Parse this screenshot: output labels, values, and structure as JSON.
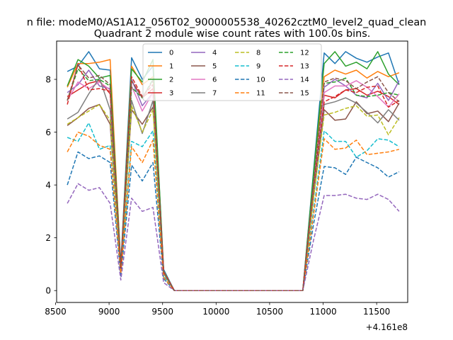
{
  "figure": {
    "suptitle": "n file: modeM0/AS1A12_056T02_9000005538_40262cztM0_level2_quad_clean",
    "title": "Quadrant 2 module wise count rates with 100.0s bins.",
    "offset_label": "+4.161e8"
  },
  "chart_data": {
    "type": "line",
    "title": "Quadrant 2 module wise count rates with 100.0s bins.",
    "xlabel": "",
    "ylabel": "",
    "x_offset": 416100000,
    "xlim": [
      8510,
      11790
    ],
    "ylim": [
      -0.45,
      9.45
    ],
    "xticks": [
      8500,
      9000,
      9500,
      10000,
      10500,
      11000,
      11500
    ],
    "xtick_labels": [
      "8500",
      "9000",
      "9500",
      "10000",
      "10500",
      "11000",
      "11500"
    ],
    "yticks": [
      0,
      2,
      4,
      6,
      8
    ],
    "ytick_labels": [
      "0",
      "2",
      "4",
      "6",
      "8"
    ],
    "grid": false,
    "legend": {
      "placement": "top-center",
      "columns": 4
    },
    "x": [
      8610,
      8710,
      8810,
      8910,
      9010,
      9110,
      9210,
      9310,
      9410,
      9510,
      9610,
      9710,
      9810,
      9910,
      10010,
      10110,
      10210,
      10310,
      10410,
      10510,
      10610,
      10710,
      10810,
      10910,
      11010,
      11110,
      11210,
      11310,
      11410,
      11510,
      11610,
      11710
    ],
    "series": [
      {
        "name": "0",
        "color": "#1f77b4",
        "dashed": false,
        "values": [
          8.3,
          8.5,
          9.05,
          8.4,
          8.35,
          1.0,
          8.82,
          8.0,
          8.5,
          0.8,
          0.0,
          0.0,
          0.0,
          0.0,
          0.0,
          0.0,
          0.0,
          0.0,
          0.0,
          0.0,
          0.0,
          0.0,
          0.0,
          4.5,
          9.0,
          8.6,
          9.05,
          8.8,
          8.65,
          8.85,
          9.0,
          7.8
        ]
      },
      {
        "name": "1",
        "color": "#ff7f0e",
        "dashed": false,
        "values": [
          7.7,
          8.6,
          8.6,
          8.65,
          8.75,
          0.9,
          8.5,
          7.8,
          8.1,
          0.75,
          0.0,
          0.0,
          0.0,
          0.0,
          0.0,
          0.0,
          0.0,
          0.0,
          0.0,
          0.0,
          0.0,
          0.0,
          0.0,
          4.3,
          8.1,
          8.35,
          8.2,
          8.35,
          8.05,
          8.3,
          8.1,
          8.25
        ]
      },
      {
        "name": "2",
        "color": "#2ca02c",
        "dashed": false,
        "values": [
          7.75,
          8.75,
          8.5,
          8.05,
          8.15,
          0.95,
          8.4,
          7.9,
          8.75,
          0.75,
          0.0,
          0.0,
          0.0,
          0.0,
          0.0,
          0.0,
          0.0,
          0.0,
          0.0,
          0.0,
          0.0,
          0.0,
          0.0,
          4.4,
          8.6,
          9.05,
          8.5,
          8.65,
          8.4,
          9.05,
          8.2,
          7.8
        ]
      },
      {
        "name": "3",
        "color": "#d62728",
        "dashed": false,
        "values": [
          7.35,
          7.6,
          7.85,
          7.95,
          7.45,
          0.9,
          7.95,
          7.3,
          7.65,
          0.72,
          0.0,
          0.0,
          0.0,
          0.0,
          0.0,
          0.0,
          0.0,
          0.0,
          0.0,
          0.0,
          0.0,
          0.0,
          0.0,
          3.9,
          7.4,
          7.3,
          7.6,
          7.65,
          7.4,
          7.55,
          7.35,
          7.05
        ]
      },
      {
        "name": "4",
        "color": "#9467bd",
        "dashed": false,
        "values": [
          7.5,
          7.8,
          8.35,
          7.75,
          7.65,
          0.9,
          8.0,
          7.0,
          7.5,
          0.72,
          0.0,
          0.0,
          0.0,
          0.0,
          0.0,
          0.0,
          0.0,
          0.0,
          0.0,
          0.0,
          0.0,
          0.0,
          0.0,
          4.0,
          7.7,
          8.0,
          7.75,
          7.4,
          7.3,
          7.85,
          7.2,
          7.95
        ]
      },
      {
        "name": "5",
        "color": "#8c564b",
        "dashed": false,
        "values": [
          6.25,
          6.55,
          6.9,
          7.05,
          6.3,
          0.8,
          6.85,
          6.3,
          6.95,
          0.65,
          0.0,
          0.0,
          0.0,
          0.0,
          0.0,
          0.0,
          0.0,
          0.0,
          0.0,
          0.0,
          0.0,
          0.0,
          0.0,
          3.5,
          6.85,
          6.45,
          6.5,
          7.15,
          6.7,
          6.8,
          6.4,
          7.1
        ]
      },
      {
        "name": "6",
        "color": "#e377c2",
        "dashed": false,
        "values": [
          7.2,
          7.9,
          7.65,
          7.9,
          7.6,
          0.85,
          7.75,
          6.8,
          7.5,
          0.7,
          0.0,
          0.0,
          0.0,
          0.0,
          0.0,
          0.0,
          0.0,
          0.0,
          0.0,
          0.0,
          0.0,
          0.0,
          0.0,
          3.9,
          7.5,
          7.75,
          7.75,
          7.95,
          7.7,
          7.35,
          6.95,
          7.45
        ]
      },
      {
        "name": "7",
        "color": "#7f7f7f",
        "dashed": false,
        "values": [
          6.5,
          6.75,
          7.45,
          8.05,
          6.85,
          0.82,
          7.2,
          5.95,
          7.2,
          0.65,
          0.0,
          0.0,
          0.0,
          0.0,
          0.0,
          0.0,
          0.0,
          0.0,
          0.0,
          0.0,
          0.0,
          0.0,
          0.0,
          3.6,
          7.05,
          7.15,
          7.3,
          7.1,
          6.75,
          6.35,
          6.85,
          6.45
        ]
      },
      {
        "name": "8",
        "color": "#bcbd22",
        "dashed": true,
        "values": [
          6.3,
          6.55,
          6.8,
          7.05,
          6.45,
          0.82,
          7.0,
          6.0,
          6.85,
          0.65,
          0.0,
          0.0,
          0.0,
          0.0,
          0.0,
          0.0,
          0.0,
          0.0,
          0.0,
          0.0,
          0.0,
          0.0,
          0.0,
          3.5,
          6.65,
          6.75,
          6.9,
          7.0,
          6.6,
          6.65,
          5.9,
          6.55
        ]
      },
      {
        "name": "9",
        "color": "#17becf",
        "dashed": true,
        "values": [
          5.8,
          5.65,
          6.35,
          5.35,
          5.5,
          0.7,
          5.65,
          5.45,
          6.05,
          0.55,
          0.0,
          0.0,
          0.0,
          0.0,
          0.0,
          0.0,
          0.0,
          0.0,
          0.0,
          0.0,
          0.0,
          0.0,
          0.0,
          3.0,
          6.05,
          5.65,
          5.65,
          5.05,
          5.3,
          5.75,
          5.7,
          5.45
        ]
      },
      {
        "name": "10",
        "color": "#1f77b4",
        "dashed": true,
        "values": [
          4.0,
          5.25,
          5.0,
          5.1,
          4.85,
          0.55,
          4.75,
          4.15,
          4.85,
          0.45,
          0.0,
          0.0,
          0.0,
          0.0,
          0.0,
          0.0,
          0.0,
          0.0,
          0.0,
          0.0,
          0.0,
          0.0,
          0.0,
          2.5,
          4.7,
          4.65,
          4.4,
          5.05,
          4.85,
          4.65,
          4.3,
          4.5
        ]
      },
      {
        "name": "11",
        "color": "#ff7f0e",
        "dashed": true,
        "values": [
          5.25,
          6.0,
          5.85,
          5.5,
          5.35,
          0.65,
          5.45,
          4.85,
          5.7,
          0.5,
          0.0,
          0.0,
          0.0,
          0.0,
          0.0,
          0.0,
          0.0,
          0.0,
          0.0,
          0.0,
          0.0,
          0.0,
          0.0,
          2.85,
          5.75,
          5.35,
          5.4,
          5.7,
          5.15,
          5.2,
          5.25,
          5.35
        ]
      },
      {
        "name": "12",
        "color": "#2ca02c",
        "dashed": true,
        "values": [
          7.2,
          8.4,
          7.95,
          8.0,
          7.75,
          0.9,
          7.7,
          7.3,
          8.0,
          0.7,
          0.0,
          0.0,
          0.0,
          0.0,
          0.0,
          0.0,
          0.0,
          0.0,
          0.0,
          0.0,
          0.0,
          0.0,
          0.0,
          4.0,
          7.85,
          7.9,
          8.05,
          7.4,
          7.35,
          7.4,
          7.5,
          7.4
        ]
      },
      {
        "name": "13",
        "color": "#d62728",
        "dashed": true,
        "values": [
          7.05,
          8.6,
          7.6,
          7.65,
          7.55,
          0.85,
          8.1,
          7.35,
          7.8,
          0.7,
          0.0,
          0.0,
          0.0,
          0.0,
          0.0,
          0.0,
          0.0,
          0.0,
          0.0,
          0.0,
          0.0,
          0.0,
          0.0,
          3.9,
          7.15,
          7.35,
          7.6,
          7.5,
          7.7,
          7.75,
          6.95,
          7.2
        ]
      },
      {
        "name": "14",
        "color": "#9467bd",
        "dashed": true,
        "values": [
          3.3,
          4.05,
          3.8,
          3.9,
          3.3,
          0.4,
          3.5,
          3.0,
          3.15,
          0.3,
          0.0,
          0.0,
          0.0,
          0.0,
          0.0,
          0.0,
          0.0,
          0.0,
          0.0,
          0.0,
          0.0,
          0.0,
          0.0,
          1.9,
          3.6,
          3.6,
          3.65,
          3.5,
          3.45,
          3.65,
          3.45,
          3.0
        ]
      },
      {
        "name": "15",
        "color": "#8c564b",
        "dashed": true,
        "values": [
          7.2,
          8.55,
          8.05,
          8.15,
          7.8,
          0.9,
          7.95,
          7.3,
          7.95,
          0.7,
          0.0,
          0.0,
          0.0,
          0.0,
          0.0,
          0.0,
          0.0,
          0.0,
          0.0,
          0.0,
          0.0,
          0.0,
          0.0,
          4.0,
          7.9,
          8.05,
          7.95,
          7.65,
          7.9,
          8.1,
          7.5,
          7.15
        ]
      }
    ]
  }
}
